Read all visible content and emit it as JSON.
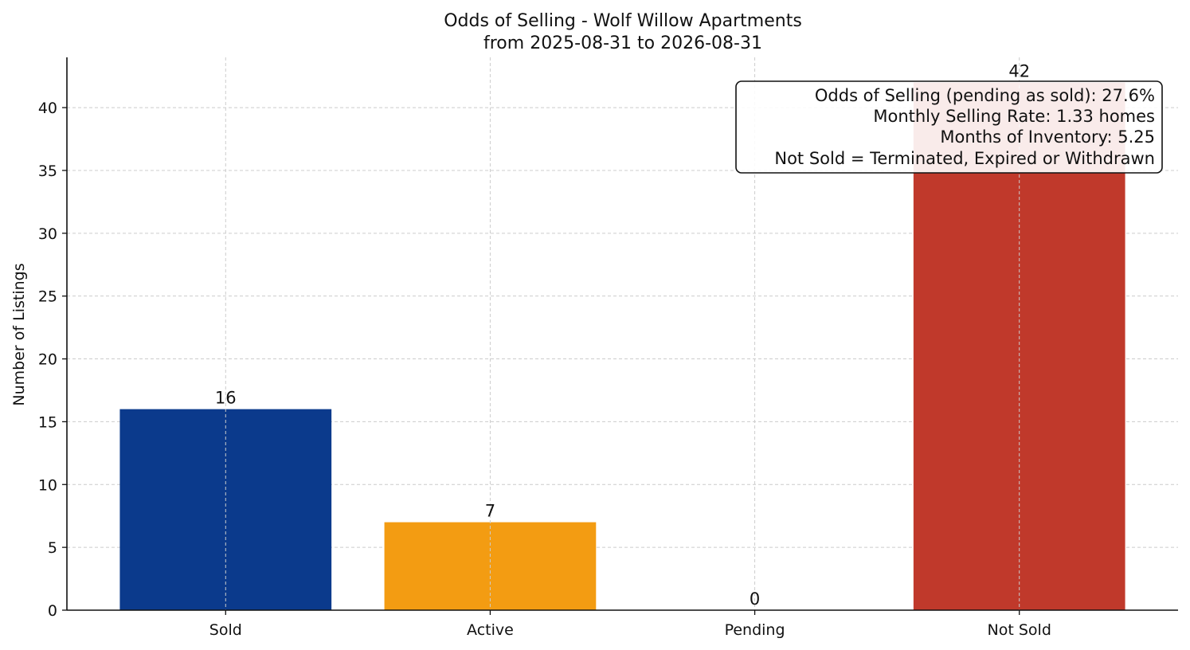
{
  "chart_data": {
    "type": "bar",
    "title": "Odds of Selling - Wolf Willow Apartments",
    "subtitle": "from 2025-08-31 to 2026-08-31",
    "xlabel": "",
    "ylabel": "Number of Listings",
    "categories": [
      "Sold",
      "Active",
      "Pending",
      "Not Sold"
    ],
    "values": [
      16,
      7,
      0,
      42
    ],
    "bar_colors": [
      "#0b3a8c",
      "#f39c12",
      "#7f8c8d",
      "#c0392b"
    ],
    "data_labels": [
      "16",
      "7",
      "0",
      "42"
    ],
    "ylim": [
      0,
      44
    ],
    "yticks": [
      0,
      5,
      10,
      15,
      20,
      25,
      30,
      35,
      40
    ],
    "grid": true,
    "annotation": {
      "placement": "top-right",
      "lines": [
        "Odds of Selling (pending as sold): 27.6%",
        "Monthly Selling Rate: 1.33 homes",
        "Months of Inventory: 5.25",
        "Not Sold = Terminated, Expired or Withdrawn"
      ]
    }
  }
}
